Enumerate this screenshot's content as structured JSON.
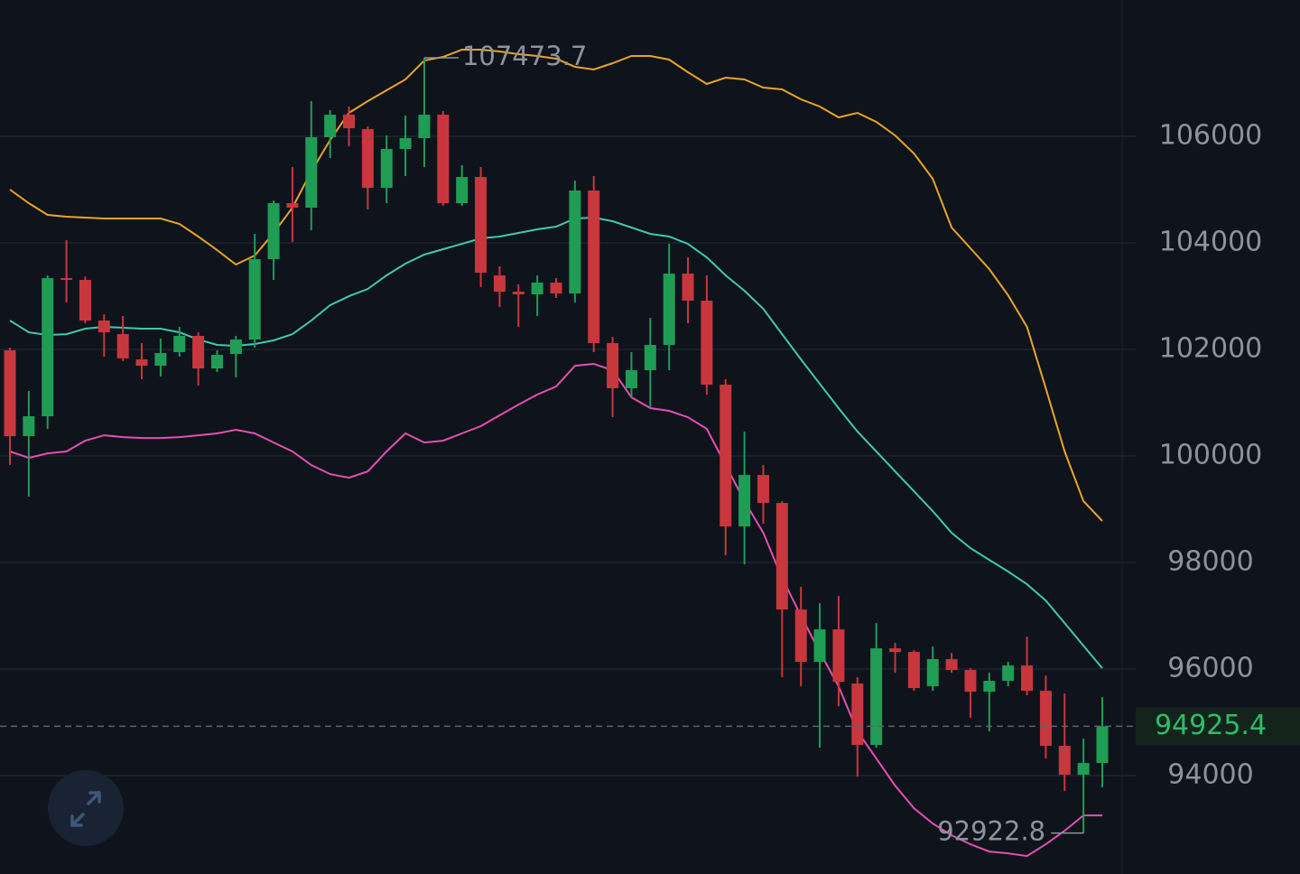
{
  "chart_data": {
    "type": "candlestick",
    "open": [
      101982,
      100372,
      100745,
      103338,
      103305,
      102542,
      102288,
      101813,
      101694,
      101949,
      102254,
      101643,
      101915,
      102186,
      103694,
      104745,
      104661,
      105983,
      106406,
      106135,
      105033,
      105762,
      105966,
      106406,
      104745,
      105237,
      103389,
      103084,
      103033,
      103254,
      103050,
      104983,
      102118,
      101271,
      101610,
      102084,
      103423,
      102915,
      101338,
      98677,
      99643,
      99118,
      97118,
      96135,
      96745,
      95728,
      94575,
      96389,
      96321,
      95677,
      96186,
      95982,
      95575,
      95779,
      96067,
      95592,
      94558,
      94016,
      94236
    ],
    "high": [
      102033,
      101220,
      103389,
      104050,
      103372,
      102660,
      102627,
      102118,
      102203,
      102423,
      102321,
      101983,
      102254,
      104169,
      104796,
      105423,
      106661,
      106491,
      106559,
      106186,
      106017,
      106389,
      107473.7,
      106474,
      105457,
      105423,
      103559,
      103220,
      103389,
      103338,
      105169,
      105254,
      102237,
      101949,
      102593,
      103983,
      103728,
      103389,
      101440,
      100457,
      99830,
      99152,
      97542,
      97236,
      97372,
      95847,
      96864,
      96491,
      96355,
      96423,
      96304,
      96016,
      95931,
      96135,
      96609,
      95880,
      95541,
      94694,
      95474
    ],
    "low": [
      99830,
      99237,
      100508,
      102881,
      102491,
      101864,
      101779,
      101440,
      101491,
      101864,
      101321,
      101576,
      101474,
      102033,
      103305,
      104016,
      104237,
      105593,
      105813,
      104627,
      104745,
      105254,
      105423,
      104694,
      104694,
      103169,
      102796,
      102423,
      102627,
      102966,
      102881,
      101949,
      100728,
      101101,
      100898,
      101610,
      102491,
      101152,
      98135,
      97965,
      98728,
      95847,
      95677,
      94524,
      95304,
      93982,
      94524,
      95931,
      95592,
      95592,
      95931,
      95084,
      94830,
      95677,
      95508,
      94321,
      93711,
      92922.8,
      93779
    ],
    "close": [
      100372,
      100745,
      103338,
      103305,
      102542,
      102321,
      101830,
      101694,
      101932,
      102254,
      101643,
      101898,
      102186,
      103694,
      104745,
      104661,
      105983,
      106406,
      106152,
      105033,
      105762,
      105966,
      106406,
      104745,
      105237,
      103440,
      103084,
      103033,
      103254,
      103050,
      104983,
      102118,
      101271,
      101610,
      102084,
      103423,
      102915,
      101338,
      98677,
      99643,
      99118,
      97118,
      96135,
      96745,
      95762,
      94575,
      96389,
      96321,
      95643,
      96186,
      95982,
      95575,
      95779,
      96067,
      95592,
      94558,
      94016,
      94236,
      94925.4
    ],
    "up_color": "#1f9d55",
    "down_color": "#c8373d",
    "series": [
      {
        "color": "#e8a528",
        "values": [
          105000,
          104745,
          104525,
          104491,
          104474,
          104457,
          104457,
          104457,
          104457,
          104355,
          104118,
          103864,
          103593,
          103762,
          104186,
          104660,
          105338,
          105932,
          106440,
          106661,
          106864,
          107067,
          107423,
          107491,
          107627,
          107627,
          107593,
          107542,
          107508,
          107457,
          107305,
          107254,
          107372,
          107508,
          107508,
          107440,
          107203,
          106983,
          107101,
          107067,
          106915,
          106881,
          106694,
          106559,
          106355,
          106440,
          106271,
          106016,
          105677,
          105203,
          104288,
          103898,
          103508,
          103016,
          102423,
          101270,
          100084,
          99152,
          98779
        ]
      },
      {
        "color": "#3fc9b0",
        "values": [
          102542,
          102321,
          102271,
          102287,
          102389,
          102423,
          102406,
          102389,
          102389,
          102321,
          102186,
          102084,
          102067,
          102101,
          102169,
          102287,
          102542,
          102830,
          102999,
          103135,
          103389,
          103610,
          103779,
          103881,
          103982,
          104084,
          104118,
          104186,
          104254,
          104305,
          104457,
          104474,
          104406,
          104288,
          104169,
          104118,
          103982,
          103728,
          103389,
          103101,
          102762,
          102287,
          101813,
          101355,
          100898,
          100457,
          100084,
          99711,
          99338,
          98965,
          98558,
          98270,
          98050,
          97830,
          97592,
          97287,
          96863,
          96440,
          96016
        ]
      },
      {
        "color": "#e54fb0",
        "values": [
          100084,
          99965,
          100050,
          100084,
          100287,
          100389,
          100355,
          100338,
          100338,
          100355,
          100389,
          100423,
          100491,
          100423,
          100253,
          100084,
          99830,
          99660,
          99592,
          99711,
          100084,
          100423,
          100253,
          100287,
          100423,
          100559,
          100762,
          100965,
          101152,
          101304,
          101694,
          101728,
          101609,
          101101,
          100898,
          100847,
          100728,
          100508,
          99830,
          99152,
          98558,
          97711,
          96999,
          96321,
          95677,
          94829,
          94321,
          93812,
          93389,
          93101,
          92880,
          92711,
          92575,
          92541,
          92490,
          92711,
          92965,
          93253,
          93253
        ]
      }
    ],
    "ylim": [
      92153,
      108559
    ],
    "yticks": [
      94000,
      96000,
      98000,
      100000,
      102000,
      104000,
      106000
    ],
    "grid": true
  }
}
